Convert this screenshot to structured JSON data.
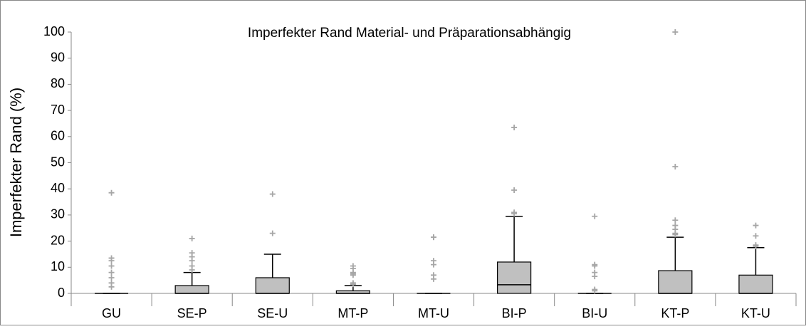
{
  "chart_data": {
    "type": "box",
    "title": "Imperfekter Rand Material- und Präparationsabhängig",
    "ylabel": "Imperfekter Rand (%)",
    "categories": [
      "GU",
      "SE-P",
      "SE-U",
      "MT-P",
      "MT-U",
      "BI-P",
      "BI-U",
      "KT-P",
      "KT-U"
    ],
    "boxes": [
      {
        "min": 0,
        "q1": 0,
        "median": 0,
        "q3": 0,
        "max": 0,
        "outliers": [
          38.5,
          13.5,
          12.5,
          10.5,
          8,
          6,
          4,
          2.5
        ]
      },
      {
        "min": 0,
        "q1": 0,
        "median": 0,
        "q3": 3,
        "max": 8,
        "outliers": [
          21,
          15.5,
          14,
          12.5,
          10.5,
          9
        ]
      },
      {
        "min": 0,
        "q1": 0,
        "median": 0,
        "q3": 6,
        "max": 15,
        "outliers": [
          38,
          23
        ]
      },
      {
        "min": 0,
        "q1": 0,
        "median": 0,
        "q3": 1,
        "max": 3,
        "outliers": [
          10.5,
          9.5,
          8,
          7.5,
          7,
          4,
          3.5
        ]
      },
      {
        "min": 0,
        "q1": 0,
        "median": 0,
        "q3": 0,
        "max": 0,
        "outliers": [
          21.5,
          21.5,
          12.5,
          11,
          7,
          5.5
        ]
      },
      {
        "min": 0,
        "q1": 0,
        "median": 3.3,
        "q3": 12,
        "max": 29.5,
        "outliers": [
          63.5,
          39.5,
          31,
          30.5
        ]
      },
      {
        "min": 0,
        "q1": 0,
        "median": 0,
        "q3": 0,
        "max": 0,
        "outliers": [
          29.5,
          11,
          10.5,
          8,
          6.5,
          1.5,
          1
        ]
      },
      {
        "min": 0,
        "q1": 0,
        "median": 0,
        "q3": 8.7,
        "max": 21.5,
        "outliers": [
          100,
          48.5,
          28,
          26,
          24.5,
          23,
          22.5
        ]
      },
      {
        "min": 0,
        "q1": 0,
        "median": 0,
        "q3": 7,
        "max": 17.5,
        "outliers": [
          26,
          22,
          18.5,
          18
        ]
      }
    ],
    "color": "#c0c0c0",
    "outlier_color": "#a6a6a6",
    "ylim": [
      0,
      100
    ],
    "yticks": [
      0,
      10,
      20,
      30,
      40,
      50,
      60,
      70,
      80,
      90,
      100
    ]
  }
}
